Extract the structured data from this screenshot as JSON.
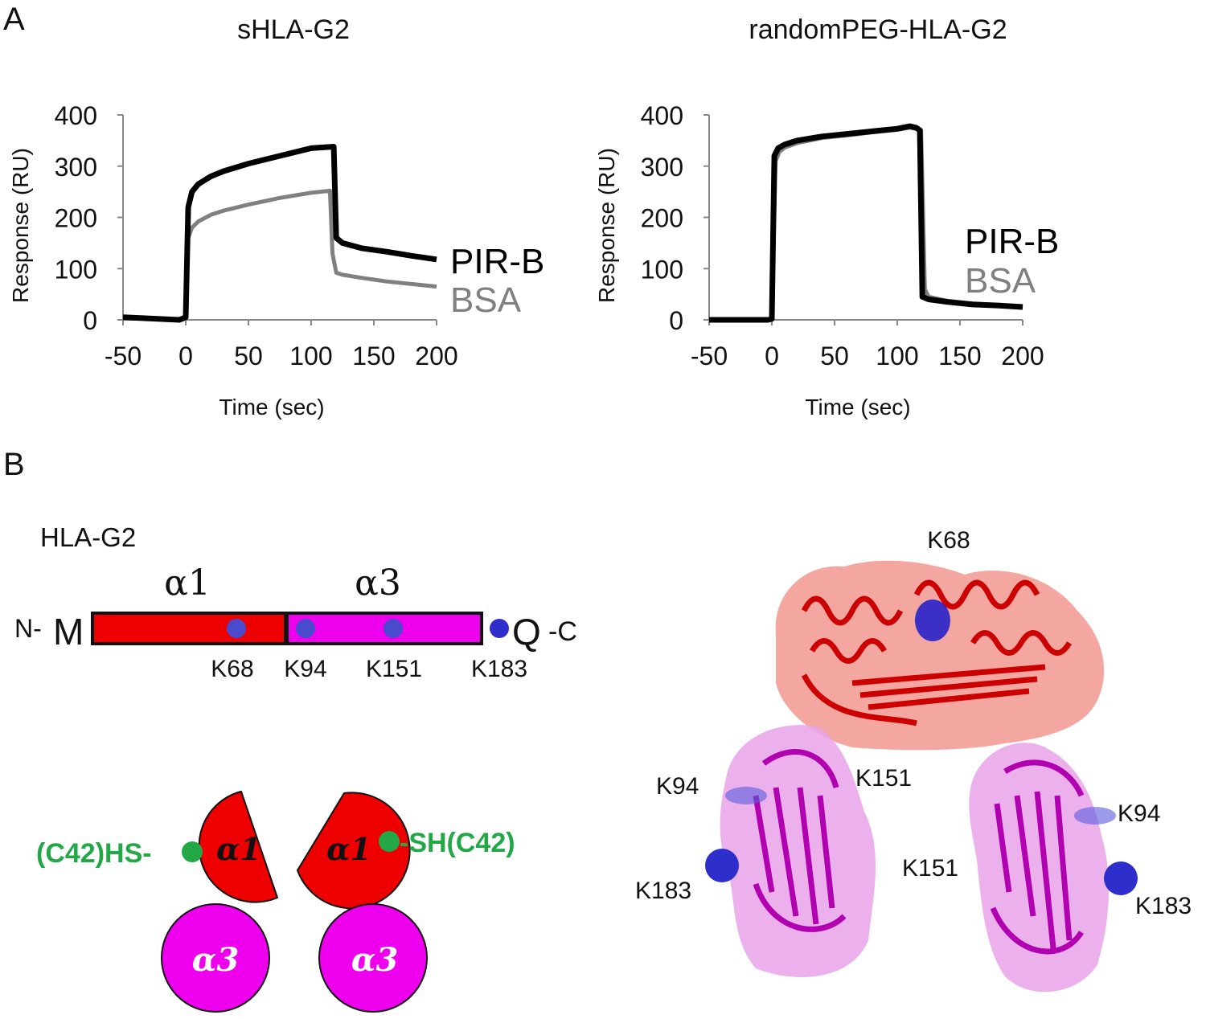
{
  "panel_a": {
    "letter": "A",
    "chart_data": [
      {
        "type": "line",
        "title": "sHLA-G2",
        "xlabel": "Time (sec)",
        "ylabel": "Response (RU)",
        "xlim": [
          -50,
          200
        ],
        "ylim": [
          0,
          400
        ],
        "xticks": [
          -50,
          0,
          50,
          100,
          150,
          200
        ],
        "yticks": [
          0,
          100,
          200,
          300,
          400
        ],
        "series": [
          {
            "name": "PIR-B",
            "color": "#000000",
            "x": [
              -50,
              -5,
              0,
              2,
              5,
              10,
              20,
              30,
              50,
              75,
              100,
              118,
              120,
              125,
              140,
              160,
              180,
              200
            ],
            "y": [
              5,
              0,
              5,
              220,
              250,
              265,
              280,
              290,
              305,
              320,
              335,
              338,
              160,
              150,
              140,
              133,
              125,
              118
            ]
          },
          {
            "name": "BSA",
            "color": "#808080",
            "x": [
              -50,
              -5,
              0,
              2,
              5,
              10,
              20,
              30,
              50,
              75,
              100,
              115,
              117,
              120,
              125,
              140,
              160,
              180,
              200
            ],
            "y": [
              5,
              0,
              3,
              160,
              180,
              192,
              205,
              213,
              225,
              238,
              248,
              252,
              130,
              92,
              88,
              82,
              75,
              70,
              65
            ]
          }
        ]
      },
      {
        "type": "line",
        "title": "randomPEG-HLA-G2",
        "xlabel": "Time (sec)",
        "ylabel": "Response (RU)",
        "xlim": [
          -50,
          200
        ],
        "ylim": [
          0,
          400
        ],
        "xticks": [
          -50,
          0,
          50,
          100,
          150,
          200
        ],
        "yticks": [
          0,
          100,
          200,
          300,
          400
        ],
        "series": [
          {
            "name": "PIR-B",
            "color": "#000000",
            "x": [
              -50,
              -3,
              0,
              2,
              5,
              10,
              20,
              40,
              60,
              80,
              100,
              110,
              115,
              118,
              120,
              125,
              140,
              160,
              180,
              200
            ],
            "y": [
              0,
              0,
              2,
              320,
              335,
              342,
              350,
              358,
              363,
              368,
              373,
              378,
              375,
              370,
              45,
              40,
              35,
              30,
              28,
              25
            ]
          },
          {
            "name": "BSA",
            "color": "#808080",
            "x": [
              -50,
              -3,
              0,
              3,
              6,
              10,
              20,
              40,
              60,
              80,
              100,
              110,
              115,
              119,
              122,
              125,
              140,
              160,
              180,
              200
            ],
            "y": [
              0,
              0,
              2,
              310,
              328,
              336,
              345,
              355,
              360,
              366,
              371,
              375,
              373,
              370,
              60,
              45,
              37,
              32,
              29,
              27
            ]
          }
        ]
      }
    ]
  },
  "panel_b": {
    "letter": "B",
    "construct_title": "HLA-G2",
    "domain_alpha1": "α1",
    "domain_alpha3": "α3",
    "n_term": "N-",
    "m_residue": "M",
    "q_residue": "Q",
    "c_term": "-C",
    "lysines": [
      "K68",
      "K94",
      "K151",
      "K183"
    ],
    "dimer": {
      "alpha1": "α1",
      "alpha3": "α3",
      "left_cys": "(C42)HS-",
      "right_cys": "-SH(C42)"
    },
    "structure_labels": {
      "top": "K68",
      "left_k94": "K94",
      "left_k151": "K151",
      "left_k183": "K183",
      "right_k94": "K94",
      "right_k151": "K151",
      "right_k183": "K183"
    },
    "colors": {
      "alpha1": "#ee0000",
      "alpha3": "#ee00ee",
      "lysine_dot": "#3333cc",
      "cysteine": "#22a846",
      "surface_red": "#f08a80",
      "surface_magenta": "#e9a3e9",
      "ribbon_red": "#cc0000",
      "ribbon_magenta": "#b000b0"
    }
  }
}
